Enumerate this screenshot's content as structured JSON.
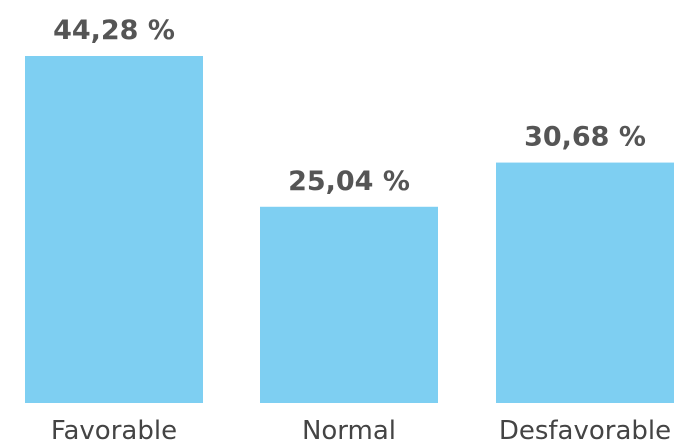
{
  "chart_data": {
    "type": "bar",
    "categories": [
      "Favorable",
      "Normal",
      "Desfavorable"
    ],
    "values": [
      44.28,
      25.04,
      30.68
    ],
    "value_labels": [
      "44,28 %",
      "25,04 %",
      "30,68 %"
    ],
    "title": "",
    "xlabel": "",
    "ylabel": "",
    "ylim": [
      0,
      44.28
    ],
    "grid": false,
    "bar_color": "#7ecff2"
  }
}
